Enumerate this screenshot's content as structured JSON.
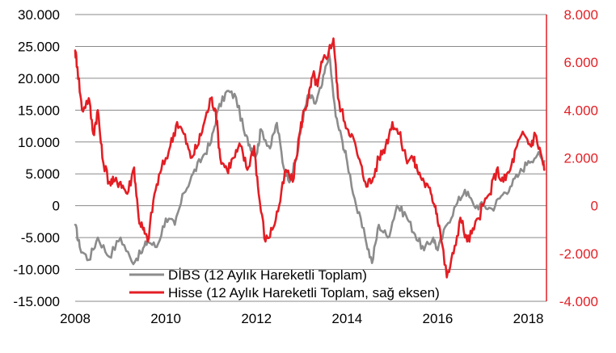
{
  "chart_data": {
    "type": "line",
    "x_range": [
      2008,
      2018.4
    ],
    "x_ticks": [
      "2008",
      "2010",
      "2012",
      "2014",
      "2016",
      "2018"
    ],
    "left_axis": {
      "range": [
        -15000,
        30000
      ],
      "ticks": [
        "30.000",
        "25.000",
        "20.000",
        "15.000",
        "10.000",
        "5.000",
        "0",
        "-5.000",
        "-10.000",
        "-15.000"
      ]
    },
    "right_axis": {
      "range": [
        -4000,
        8000
      ],
      "ticks": [
        "8.000",
        "6.000",
        "4.000",
        "2.000",
        "0",
        "-2.000",
        "-4.000"
      ],
      "color": "#e31e24"
    },
    "grid": "horizontal",
    "legend_position": "bottom-left",
    "series": [
      {
        "name": "DİBS (12 Aylık Hareketli Toplam)",
        "color": "#8c8c8c",
        "axis": "left",
        "x": [
          2008.0,
          2008.1,
          2008.3,
          2008.5,
          2008.75,
          2009.0,
          2009.25,
          2009.45,
          2009.6,
          2009.8,
          2010.0,
          2010.2,
          2010.4,
          2010.6,
          2010.8,
          2011.0,
          2011.15,
          2011.35,
          2011.55,
          2011.75,
          2011.9,
          2012.0,
          2012.1,
          2012.3,
          2012.45,
          2012.6,
          2012.75,
          2012.9,
          2013.0,
          2013.15,
          2013.3,
          2013.45,
          2013.6,
          2013.75,
          2013.9,
          2014.0,
          2014.2,
          2014.4,
          2014.55,
          2014.7,
          2014.9,
          2015.1,
          2015.3,
          2015.5,
          2015.7,
          2015.9,
          2016.0,
          2016.2,
          2016.4,
          2016.6,
          2016.8,
          2017.0,
          2017.2,
          2017.4,
          2017.6,
          2017.8,
          2018.0,
          2018.2,
          2018.35
        ],
        "values": [
          -3000,
          -6500,
          -8500,
          -5000,
          -8000,
          -5000,
          -8800,
          -7500,
          -5500,
          -6500,
          -2000,
          -3000,
          2000,
          5000,
          7500,
          10000,
          15000,
          18000,
          17000,
          11000,
          9000,
          8000,
          12000,
          9000,
          13000,
          6000,
          4000,
          8000,
          13000,
          17500,
          16000,
          19000,
          24000,
          14000,
          10000,
          7000,
          0,
          -5000,
          -9000,
          -3000,
          -5000,
          0,
          -1500,
          -4500,
          -7000,
          -5000,
          -7000,
          -3000,
          0,
          2500,
          0,
          0,
          -500,
          1500,
          3000,
          5000,
          7000,
          8000,
          7000
        ]
      },
      {
        "name": "Hisse (12 Aylık Hareketli Toplam, sağ eksen)",
        "color": "#e31e24",
        "axis": "right",
        "x": [
          2008.0,
          2008.05,
          2008.15,
          2008.3,
          2008.4,
          2008.5,
          2008.6,
          2008.75,
          2008.85,
          2009.0,
          2009.15,
          2009.3,
          2009.4,
          2009.5,
          2009.6,
          2009.75,
          2009.9,
          2010.1,
          2010.25,
          2010.4,
          2010.55,
          2010.7,
          2010.85,
          2011.0,
          2011.1,
          2011.2,
          2011.35,
          2011.5,
          2011.65,
          2011.8,
          2011.95,
          2012.05,
          2012.2,
          2012.35,
          2012.5,
          2012.65,
          2012.8,
          2012.95,
          2013.05,
          2013.15,
          2013.25,
          2013.35,
          2013.45,
          2013.6,
          2013.7,
          2013.8,
          2013.95,
          2014.1,
          2014.25,
          2014.4,
          2014.55,
          2014.7,
          2014.85,
          2015.0,
          2015.15,
          2015.3,
          2015.45,
          2015.55,
          2015.7,
          2015.85,
          2015.95,
          2016.05,
          2016.2,
          2016.35,
          2016.5,
          2016.65,
          2016.8,
          2017.0,
          2017.15,
          2017.3,
          2017.45,
          2017.6,
          2017.75,
          2017.9,
          2018.05,
          2018.15,
          2018.3,
          2018.35
        ],
        "values": [
          6500,
          5800,
          4000,
          4500,
          3000,
          4000,
          2000,
          1000,
          1000,
          1000,
          500,
          1600,
          -500,
          -1000,
          -1500,
          500,
          1500,
          2500,
          3500,
          3000,
          2000,
          2500,
          3500,
          4500,
          4000,
          2000,
          1500,
          2000,
          2500,
          1500,
          2500,
          500,
          -1500,
          -1000,
          0,
          1500,
          1000,
          3000,
          4000,
          4500,
          5500,
          5000,
          6000,
          6500,
          7000,
          4500,
          3500,
          3000,
          2000,
          1000,
          1000,
          2000,
          2500,
          3500,
          3000,
          2000,
          2000,
          1500,
          1000,
          500,
          0,
          -1000,
          -3000,
          -2000,
          -500,
          -1500,
          -1000,
          0,
          500,
          1500,
          1000,
          1500,
          2500,
          3000,
          2500,
          3000,
          2000,
          1500
        ]
      }
    ]
  }
}
